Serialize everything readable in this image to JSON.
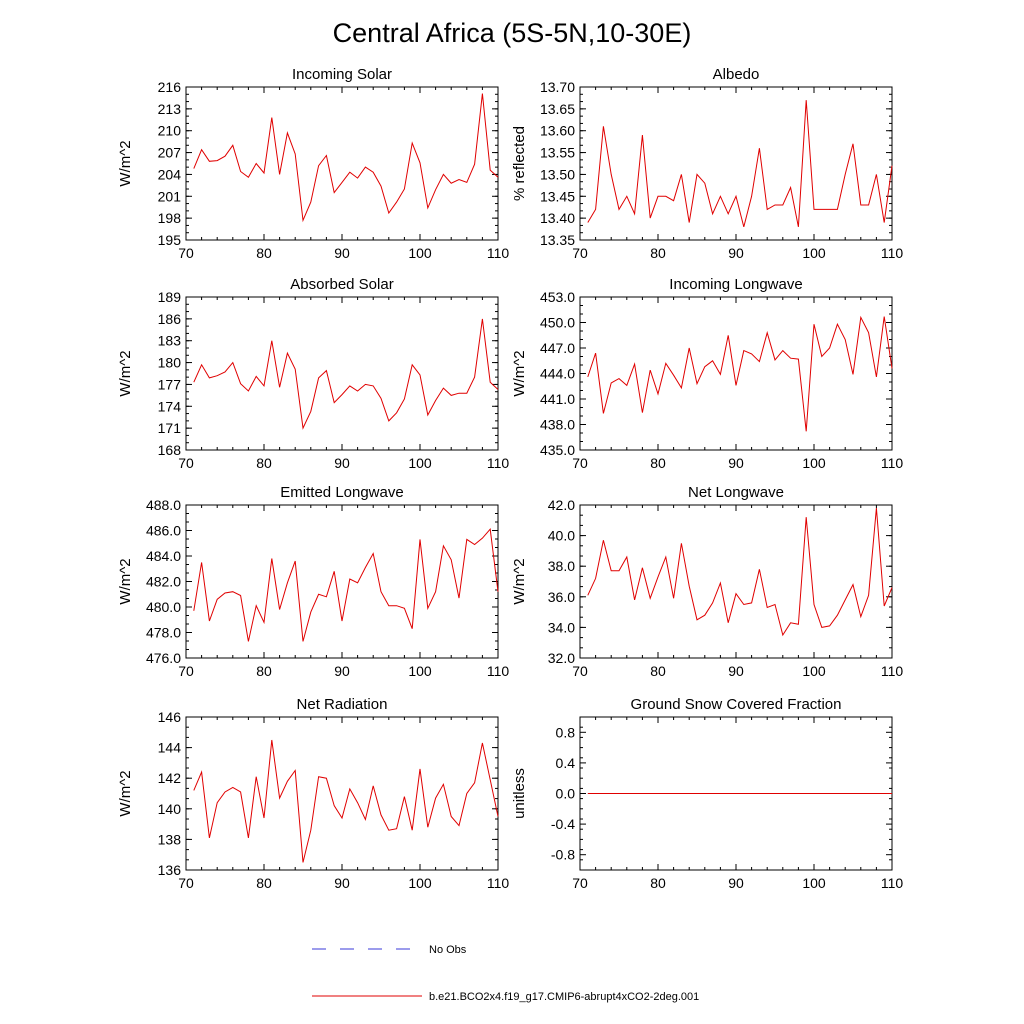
{
  "figure": {
    "title": "Central Africa (5S-5N,10-30E)"
  },
  "legend": {
    "obs_label": "No Obs",
    "obs_color": "#3a3ad8",
    "model_label": "b.e21.BCO2x4.f19_g17.CMIP6-abrupt4xCO2-2deg.001",
    "model_color": "#e00000"
  },
  "chart_data": [
    {
      "type": "line",
      "title": "Incoming Solar",
      "ylabel": "W/m^2",
      "xlim": [
        70,
        110
      ],
      "ylim": [
        195,
        216
      ],
      "xticks": [
        "70",
        "80",
        "90",
        "100",
        "110"
      ],
      "yticks": [
        "195",
        "198",
        "201",
        "204",
        "207",
        "210",
        "213",
        "216"
      ],
      "x": [
        71,
        72,
        73,
        74,
        75,
        76,
        77,
        78,
        79,
        80,
        81,
        82,
        83,
        84,
        85,
        86,
        87,
        88,
        89,
        90,
        91,
        92,
        93,
        94,
        95,
        96,
        97,
        98,
        99,
        100,
        101,
        102,
        103,
        104,
        105,
        106,
        107,
        108,
        109,
        110
      ],
      "values": [
        204.8,
        207.4,
        205.8,
        205.9,
        206.5,
        208.0,
        204.4,
        203.6,
        205.5,
        204.2,
        211.8,
        204.0,
        209.7,
        206.8,
        197.7,
        200.2,
        205.2,
        206.6,
        201.5,
        202.9,
        204.3,
        203.5,
        205.0,
        204.3,
        202.4,
        198.7,
        200.2,
        202.0,
        208.3,
        205.6,
        199.4,
        201.9,
        204.0,
        202.8,
        203.3,
        202.9,
        205.4,
        215.1,
        204.6,
        203.6
      ],
      "series_name": "b.e21.BCO2x4.f19_g17.CMIP6-abrupt4xCO2-2deg.001"
    },
    {
      "type": "line",
      "title": "Albedo",
      "ylabel": "% reflected",
      "xlim": [
        70,
        110
      ],
      "ylim": [
        13.35,
        13.7
      ],
      "xticks": [
        "70",
        "80",
        "90",
        "100",
        "110"
      ],
      "yticks": [
        "13.35",
        "13.40",
        "13.45",
        "13.50",
        "13.55",
        "13.60",
        "13.65",
        "13.70"
      ],
      "x": [
        71,
        72,
        73,
        74,
        75,
        76,
        77,
        78,
        79,
        80,
        81,
        82,
        83,
        84,
        85,
        86,
        87,
        88,
        89,
        90,
        91,
        92,
        93,
        94,
        95,
        96,
        97,
        98,
        99,
        100,
        101,
        102,
        103,
        104,
        105,
        106,
        107,
        108,
        109,
        110
      ],
      "values": [
        13.39,
        13.42,
        13.61,
        13.5,
        13.42,
        13.45,
        13.41,
        13.59,
        13.4,
        13.45,
        13.45,
        13.44,
        13.5,
        13.39,
        13.5,
        13.48,
        13.41,
        13.45,
        13.41,
        13.45,
        13.38,
        13.45,
        13.56,
        13.42,
        13.43,
        13.43,
        13.47,
        13.38,
        13.67,
        13.42,
        13.42,
        13.42,
        13.42,
        13.5,
        13.57,
        13.43,
        13.43,
        13.5,
        13.39,
        13.52
      ],
      "series_name": "b.e21.BCO2x4.f19_g17.CMIP6-abrupt4xCO2-2deg.001"
    },
    {
      "type": "line",
      "title": "Absorbed Solar",
      "ylabel": "W/m^2",
      "xlim": [
        70,
        110
      ],
      "ylim": [
        168,
        189
      ],
      "xticks": [
        "70",
        "80",
        "90",
        "100",
        "110"
      ],
      "yticks": [
        "168",
        "171",
        "174",
        "177",
        "180",
        "183",
        "186",
        "189"
      ],
      "x": [
        71,
        72,
        73,
        74,
        75,
        76,
        77,
        78,
        79,
        80,
        81,
        82,
        83,
        84,
        85,
        86,
        87,
        88,
        89,
        90,
        91,
        92,
        93,
        94,
        95,
        96,
        97,
        98,
        99,
        100,
        101,
        102,
        103,
        104,
        105,
        106,
        107,
        108,
        109,
        110
      ],
      "values": [
        177.3,
        179.7,
        177.9,
        178.2,
        178.7,
        180.0,
        177.1,
        176.1,
        178.1,
        176.8,
        183.0,
        176.6,
        181.3,
        179.1,
        171.0,
        173.3,
        177.9,
        178.9,
        174.5,
        175.6,
        176.8,
        176.1,
        177.0,
        176.8,
        175.1,
        172.0,
        173.1,
        175.0,
        179.7,
        178.3,
        172.8,
        174.8,
        176.5,
        175.5,
        175.8,
        175.8,
        178.0,
        186.0,
        177.3,
        176.3
      ],
      "series_name": "b.e21.BCO2x4.f19_g17.CMIP6-abrupt4xCO2-2deg.001"
    },
    {
      "type": "line",
      "title": "Incoming Longwave",
      "ylabel": "W/m^2",
      "xlim": [
        70,
        110
      ],
      "ylim": [
        435.0,
        453.0
      ],
      "xticks": [
        "70",
        "80",
        "90",
        "100",
        "110"
      ],
      "yticks": [
        "435.0",
        "438.0",
        "441.0",
        "444.0",
        "447.0",
        "450.0",
        "453.0"
      ],
      "x": [
        71,
        72,
        73,
        74,
        75,
        76,
        77,
        78,
        79,
        80,
        81,
        82,
        83,
        84,
        85,
        86,
        87,
        88,
        89,
        90,
        91,
        92,
        93,
        94,
        95,
        96,
        97,
        98,
        99,
        100,
        101,
        102,
        103,
        104,
        105,
        106,
        107,
        108,
        109,
        110
      ],
      "values": [
        443.6,
        446.4,
        439.3,
        442.9,
        443.4,
        442.6,
        445.1,
        439.4,
        444.4,
        441.6,
        445.2,
        443.8,
        442.3,
        447.0,
        442.8,
        444.8,
        445.5,
        443.9,
        448.5,
        442.6,
        446.7,
        446.3,
        445.4,
        448.8,
        445.6,
        446.7,
        445.8,
        445.7,
        437.2,
        449.8,
        446.0,
        447.0,
        449.8,
        448.0,
        443.9,
        450.6,
        448.8,
        443.6,
        450.7,
        444.6
      ],
      "series_name": "b.e21.BCO2x4.f19_g17.CMIP6-abrupt4xCO2-2deg.001"
    },
    {
      "type": "line",
      "title": "Emitted Longwave",
      "ylabel": "W/m^2",
      "xlim": [
        70,
        110
      ],
      "ylim": [
        476.0,
        488.0
      ],
      "xticks": [
        "70",
        "80",
        "90",
        "100",
        "110"
      ],
      "yticks": [
        "476.0",
        "478.0",
        "480.0",
        "482.0",
        "484.0",
        "486.0",
        "488.0"
      ],
      "x": [
        71,
        72,
        73,
        74,
        75,
        76,
        77,
        78,
        79,
        80,
        81,
        82,
        83,
        84,
        85,
        86,
        87,
        88,
        89,
        90,
        91,
        92,
        93,
        94,
        95,
        96,
        97,
        98,
        99,
        100,
        101,
        102,
        103,
        104,
        105,
        106,
        107,
        108,
        109,
        110
      ],
      "values": [
        479.7,
        483.5,
        478.9,
        480.6,
        481.1,
        481.2,
        480.9,
        477.3,
        480.1,
        478.8,
        483.8,
        479.8,
        481.9,
        483.6,
        477.3,
        479.6,
        481.0,
        480.8,
        482.8,
        478.9,
        482.2,
        481.9,
        483.1,
        484.2,
        481.2,
        480.1,
        480.1,
        479.9,
        478.3,
        485.3,
        479.9,
        481.2,
        484.8,
        483.7,
        480.7,
        485.3,
        484.9,
        485.4,
        486.1,
        481.2
      ],
      "series_name": "b.e21.BCO2x4.f19_g17.CMIP6-abrupt4xCO2-2deg.001"
    },
    {
      "type": "line",
      "title": "Net Longwave",
      "ylabel": "W/m^2",
      "xlim": [
        70,
        110
      ],
      "ylim": [
        32.0,
        42.0
      ],
      "xticks": [
        "70",
        "80",
        "90",
        "100",
        "110"
      ],
      "yticks": [
        "32.0",
        "34.0",
        "36.0",
        "38.0",
        "40.0",
        "42.0"
      ],
      "x": [
        71,
        72,
        73,
        74,
        75,
        76,
        77,
        78,
        79,
        80,
        81,
        82,
        83,
        84,
        85,
        86,
        87,
        88,
        89,
        90,
        91,
        92,
        93,
        94,
        95,
        96,
        97,
        98,
        99,
        100,
        101,
        102,
        103,
        104,
        105,
        106,
        107,
        108,
        109,
        110
      ],
      "values": [
        36.1,
        37.2,
        39.7,
        37.7,
        37.7,
        38.6,
        35.8,
        37.9,
        35.9,
        37.3,
        38.6,
        35.9,
        39.5,
        36.7,
        34.5,
        34.8,
        35.6,
        36.9,
        34.3,
        36.2,
        35.5,
        35.6,
        37.8,
        35.3,
        35.5,
        33.5,
        34.3,
        34.2,
        41.2,
        35.5,
        34.0,
        34.1,
        34.8,
        35.8,
        36.8,
        34.7,
        36.1,
        41.8,
        35.4,
        36.6
      ],
      "series_name": "b.e21.BCO2x4.f19_g17.CMIP6-abrupt4xCO2-2deg.001"
    },
    {
      "type": "line",
      "title": "Net Radiation",
      "ylabel": "W/m^2",
      "xlim": [
        70,
        110
      ],
      "ylim": [
        136,
        146
      ],
      "xticks": [
        "70",
        "80",
        "90",
        "100",
        "110"
      ],
      "yticks": [
        "136",
        "138",
        "140",
        "142",
        "144",
        "146"
      ],
      "x": [
        71,
        72,
        73,
        74,
        75,
        76,
        77,
        78,
        79,
        80,
        81,
        82,
        83,
        84,
        85,
        86,
        87,
        88,
        89,
        90,
        91,
        92,
        93,
        94,
        95,
        96,
        97,
        98,
        99,
        100,
        101,
        102,
        103,
        104,
        105,
        106,
        107,
        108,
        109,
        110
      ],
      "values": [
        141.2,
        142.4,
        138.1,
        140.4,
        141.1,
        141.4,
        141.1,
        138.1,
        142.1,
        139.4,
        144.5,
        140.7,
        141.8,
        142.5,
        136.5,
        138.6,
        142.1,
        142.0,
        140.2,
        139.4,
        141.3,
        140.4,
        139.3,
        141.5,
        139.6,
        138.6,
        138.7,
        140.8,
        138.6,
        142.6,
        138.8,
        140.7,
        141.6,
        139.5,
        138.9,
        141.0,
        141.7,
        144.3,
        141.9,
        139.5
      ],
      "series_name": "b.e21.BCO2x4.f19_g17.CMIP6-abrupt4xCO2-2deg.001"
    },
    {
      "type": "line",
      "title": "Ground Snow Covered Fraction",
      "ylabel": "unitless",
      "xlim": [
        70,
        110
      ],
      "ylim": [
        -1.0,
        1.0
      ],
      "xticks": [
        "70",
        "80",
        "90",
        "100",
        "110"
      ],
      "yticks": [
        "-0.8",
        "-0.4",
        "0.0",
        "0.4",
        "0.8"
      ],
      "ytick_values": [
        -0.8,
        -0.4,
        0.0,
        0.4,
        0.8
      ],
      "x": [
        71,
        72,
        73,
        74,
        75,
        76,
        77,
        78,
        79,
        80,
        81,
        82,
        83,
        84,
        85,
        86,
        87,
        88,
        89,
        90,
        91,
        92,
        93,
        94,
        95,
        96,
        97,
        98,
        99,
        100,
        101,
        102,
        103,
        104,
        105,
        106,
        107,
        108,
        109,
        110
      ],
      "values": [
        0,
        0,
        0,
        0,
        0,
        0,
        0,
        0,
        0,
        0,
        0,
        0,
        0,
        0,
        0,
        0,
        0,
        0,
        0,
        0,
        0,
        0,
        0,
        0,
        0,
        0,
        0,
        0,
        0,
        0,
        0,
        0,
        0,
        0,
        0,
        0,
        0,
        0,
        0,
        0
      ],
      "series_name": "b.e21.BCO2x4.f19_g17.CMIP6-abrupt4xCO2-2deg.001"
    }
  ]
}
